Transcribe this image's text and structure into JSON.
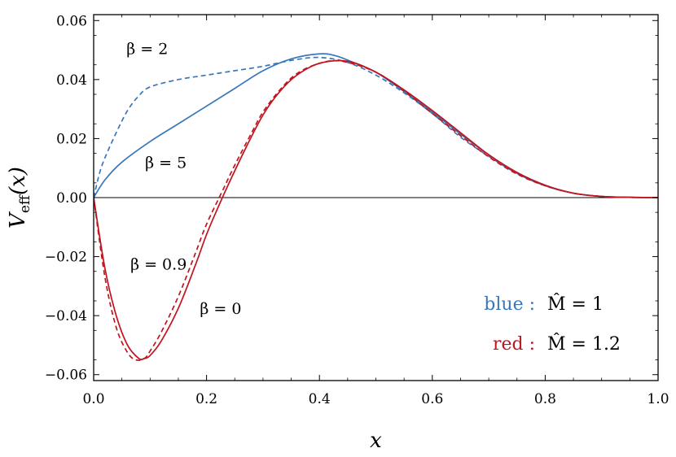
{
  "chart_data": {
    "type": "line",
    "xlabel": "x",
    "ylabel": "V_eff(x)",
    "xlim": [
      0.0,
      1.0
    ],
    "ylim": [
      -0.062,
      0.062
    ],
    "x_ticks": [
      "0.0",
      "0.2",
      "0.4",
      "0.6",
      "0.8",
      "1.0"
    ],
    "y_ticks": [
      "−0.06",
      "−0.04",
      "−0.02",
      "0.00",
      "0.02",
      "0.04",
      "0.06"
    ],
    "x_tick_values": [
      0.0,
      0.2,
      0.4,
      0.6,
      0.8,
      1.0
    ],
    "y_tick_values": [
      -0.06,
      -0.04,
      -0.02,
      0.0,
      0.02,
      0.04,
      0.06
    ],
    "grid": false,
    "zero_line": true,
    "colors": {
      "blue": "#3a77b8",
      "red": "#c0141f"
    },
    "series": [
      {
        "color": "blue",
        "style": "solid",
        "x": [
          0.0,
          0.02,
          0.05,
          0.1,
          0.15,
          0.2,
          0.25,
          0.3,
          0.35,
          0.4,
          0.43,
          0.47,
          0.5,
          0.55,
          0.6,
          0.65,
          0.7,
          0.75,
          0.8,
          0.85,
          0.9,
          0.95,
          1.0
        ],
        "y": [
          0.0,
          0.006,
          0.012,
          0.019,
          0.025,
          0.031,
          0.037,
          0.043,
          0.047,
          0.0487,
          0.048,
          0.045,
          0.0425,
          0.036,
          0.029,
          0.0215,
          0.0145,
          0.0085,
          0.0042,
          0.0015,
          0.0004,
          0.0001,
          0.0
        ]
      },
      {
        "color": "blue",
        "style": "dashed",
        "x": [
          0.0,
          0.01,
          0.02,
          0.04,
          0.06,
          0.08,
          0.1,
          0.15,
          0.2,
          0.25,
          0.3,
          0.35,
          0.4,
          0.45,
          0.5,
          0.55,
          0.6,
          0.65,
          0.7,
          0.75,
          0.8,
          0.85,
          0.9,
          0.95,
          1.0
        ],
        "y": [
          0.0,
          0.008,
          0.0135,
          0.022,
          0.0295,
          0.0345,
          0.0375,
          0.04,
          0.0415,
          0.043,
          0.0445,
          0.0465,
          0.0475,
          0.0458,
          0.0415,
          0.0355,
          0.0285,
          0.0205,
          0.014,
          0.0082,
          0.004,
          0.0015,
          0.0004,
          0.0001,
          0.0
        ]
      },
      {
        "color": "red",
        "style": "solid",
        "x": [
          0.0,
          0.02,
          0.04,
          0.06,
          0.08,
          0.09,
          0.1,
          0.12,
          0.15,
          0.18,
          0.2,
          0.22,
          0.24,
          0.27,
          0.3,
          0.33,
          0.36,
          0.4,
          0.45,
          0.5,
          0.55,
          0.6,
          0.65,
          0.7,
          0.75,
          0.8,
          0.85,
          0.9,
          0.95,
          1.0
        ],
        "y": [
          0.0,
          -0.024,
          -0.04,
          -0.05,
          -0.0545,
          -0.0545,
          -0.0535,
          -0.0485,
          -0.0375,
          -0.023,
          -0.0125,
          -0.0035,
          0.005,
          0.017,
          0.028,
          0.036,
          0.0415,
          0.0455,
          0.0462,
          0.0425,
          0.0365,
          0.0295,
          0.022,
          0.0145,
          0.0085,
          0.0042,
          0.0015,
          0.0004,
          0.0001,
          0.0
        ]
      },
      {
        "color": "red",
        "style": "dashed",
        "x": [
          0.0,
          0.02,
          0.04,
          0.06,
          0.075,
          0.09,
          0.1,
          0.12,
          0.15,
          0.18,
          0.2,
          0.23,
          0.25,
          0.28,
          0.3,
          0.33,
          0.36,
          0.4,
          0.44,
          0.5,
          0.55,
          0.6,
          0.65,
          0.7,
          0.75,
          0.8,
          0.85,
          0.9,
          0.95,
          1.0
        ],
        "y": [
          0.0,
          -0.027,
          -0.044,
          -0.0525,
          -0.055,
          -0.0545,
          -0.052,
          -0.0455,
          -0.0335,
          -0.019,
          -0.009,
          0.003,
          0.011,
          0.022,
          0.029,
          0.0365,
          0.042,
          0.0455,
          0.0462,
          0.0425,
          0.036,
          0.0285,
          0.021,
          0.0138,
          0.008,
          0.004,
          0.0015,
          0.0004,
          0.0001,
          0.0
        ]
      }
    ],
    "annotations": [
      {
        "beta_label": "β = 2",
        "x": 0.095,
        "y": 0.0505
      },
      {
        "beta_label": "β = 5",
        "x": 0.128,
        "y": 0.012
      },
      {
        "beta_label": "β = 0.9",
        "x": 0.115,
        "y": -0.0225
      },
      {
        "beta_label": "β = 0",
        "x": 0.225,
        "y": -0.0375
      }
    ],
    "legend": [
      {
        "color": "blue",
        "prefix": "blue :",
        "label": "M̂ = 1"
      },
      {
        "color": "red",
        "prefix": "red :",
        "label": "M̂ = 1.2"
      }
    ],
    "legend_placement": "bottom-right"
  }
}
